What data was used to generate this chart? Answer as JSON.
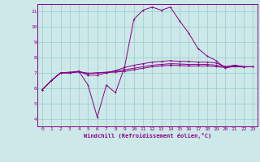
{
  "bg_color": "#cce8e8",
  "line_color": "#880088",
  "grid_color": "#99cccc",
  "xlabel": "Windchill (Refroidissement éolien,°C)",
  "xlim": [
    -0.5,
    23.5
  ],
  "ylim": [
    3.5,
    11.5
  ],
  "xticks": [
    0,
    1,
    2,
    3,
    4,
    5,
    6,
    7,
    8,
    9,
    10,
    11,
    12,
    13,
    14,
    15,
    16,
    17,
    18,
    19,
    20,
    21,
    22,
    23
  ],
  "yticks": [
    4,
    5,
    6,
    7,
    8,
    9,
    10,
    11
  ],
  "line1_x": [
    0,
    1,
    2,
    3,
    4,
    5,
    6,
    7,
    8,
    9,
    10,
    11,
    12,
    13,
    14,
    15,
    16,
    17,
    18,
    19,
    20,
    21,
    22,
    23
  ],
  "line1_y": [
    5.9,
    6.5,
    7.0,
    7.0,
    7.1,
    6.2,
    4.1,
    6.2,
    5.7,
    7.4,
    10.5,
    11.1,
    11.3,
    11.1,
    11.3,
    10.4,
    9.6,
    8.6,
    8.1,
    7.8,
    7.3,
    7.5,
    7.4,
    7.4
  ],
  "line2_x": [
    0,
    1,
    2,
    3,
    4,
    5,
    6,
    7,
    8,
    9,
    10,
    11,
    12,
    13,
    14,
    15,
    16,
    17,
    18,
    19,
    20,
    21,
    22,
    23
  ],
  "line2_y": [
    5.9,
    6.5,
    7.0,
    7.05,
    7.1,
    6.85,
    6.85,
    7.0,
    7.15,
    7.35,
    7.5,
    7.6,
    7.7,
    7.75,
    7.8,
    7.75,
    7.75,
    7.7,
    7.7,
    7.65,
    7.4,
    7.5,
    7.4,
    7.4
  ],
  "line3_x": [
    0,
    1,
    2,
    3,
    4,
    5,
    6,
    7,
    8,
    9,
    10,
    11,
    12,
    13,
    14,
    15,
    16,
    17,
    18,
    19,
    20,
    21,
    22,
    23
  ],
  "line3_y": [
    5.9,
    6.5,
    7.0,
    7.0,
    7.1,
    6.95,
    7.0,
    7.05,
    7.1,
    7.2,
    7.3,
    7.4,
    7.5,
    7.55,
    7.6,
    7.58,
    7.55,
    7.55,
    7.55,
    7.5,
    7.4,
    7.45,
    7.4,
    7.4
  ],
  "line4_x": [
    0,
    1,
    2,
    3,
    4,
    5,
    6,
    7,
    8,
    9,
    10,
    11,
    12,
    13,
    14,
    15,
    16,
    17,
    18,
    19,
    20,
    21,
    22,
    23
  ],
  "line4_y": [
    5.9,
    6.5,
    7.0,
    7.0,
    7.05,
    6.98,
    7.0,
    7.02,
    7.05,
    7.1,
    7.2,
    7.3,
    7.4,
    7.45,
    7.5,
    7.48,
    7.45,
    7.45,
    7.45,
    7.4,
    7.35,
    7.4,
    7.38,
    7.4
  ]
}
